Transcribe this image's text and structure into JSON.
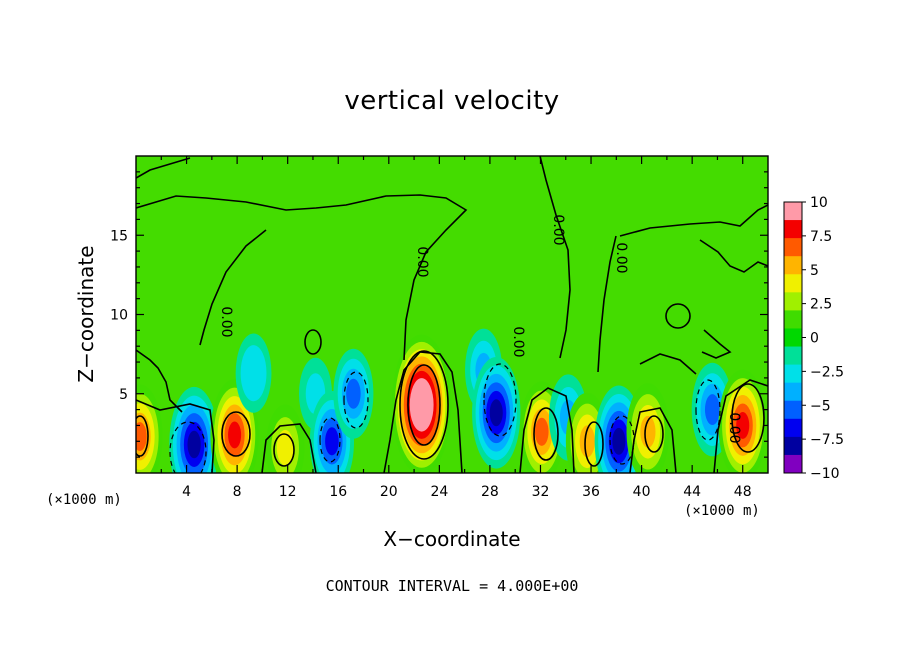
{
  "chart_data": {
    "type": "heatmap",
    "title": "vertical velocity",
    "xlabel": "X−coordinate",
    "ylabel": "Z−coordinate",
    "x_unit": "(×1000 m)",
    "x_ticks": [
      4,
      8,
      12,
      16,
      20,
      24,
      28,
      32,
      36,
      40,
      44,
      48
    ],
    "y_ticks": [
      5,
      10,
      15
    ],
    "xlim": [
      0,
      50
    ],
    "ylim": [
      0,
      20
    ],
    "colorbar": {
      "levels": [
        10,
        7.5,
        5,
        2.5,
        0,
        -2.5,
        -5,
        -7.5,
        -10
      ],
      "labels": [
        "10",
        "7.5",
        "5",
        "2.5",
        "0",
        "−2.5",
        "−5",
        "−7.5",
        "−10"
      ],
      "colors": [
        "#ff9aa8",
        "#f40000",
        "#ff5a00",
        "#ffb400",
        "#f0f000",
        "#a0f000",
        "#40dc00",
        "#00d800",
        "#00e098",
        "#00e0e8",
        "#00b0ff",
        "#0060ff",
        "#0000f0",
        "#0000a0",
        "#8000c0"
      ]
    },
    "contour_label": "0.00",
    "contour_interval_text": "CONTOUR INTERVAL =  4.000E+00",
    "features": [
      {
        "x": 0.3,
        "z": 2.3,
        "w": 7.0,
        "type": "updraft"
      },
      {
        "x": 4.6,
        "z": 1.8,
        "w": -8.5,
        "type": "downdraft"
      },
      {
        "x": 7.8,
        "z": 2.4,
        "w": 8.0,
        "type": "updraft"
      },
      {
        "x": 9.3,
        "z": 6.3,
        "w": -3.5,
        "type": "downdraft"
      },
      {
        "x": 11.8,
        "z": 1.6,
        "w": 4.5,
        "type": "updraft"
      },
      {
        "x": 14.2,
        "z": 5.0,
        "w": -2.5,
        "type": "downdraft"
      },
      {
        "x": 15.5,
        "z": 2.0,
        "w": -6.5,
        "type": "downdraft"
      },
      {
        "x": 17.2,
        "z": 5.0,
        "w": -5.0,
        "type": "downdraft"
      },
      {
        "x": 22.6,
        "z": 4.3,
        "w": 12.0,
        "type": "updraft"
      },
      {
        "x": 27.5,
        "z": 6.5,
        "w": -4.0,
        "type": "downdraft"
      },
      {
        "x": 28.5,
        "z": 3.8,
        "w": -8.0,
        "type": "downdraft"
      },
      {
        "x": 32.1,
        "z": 2.6,
        "w": 6.5,
        "type": "updraft"
      },
      {
        "x": 34.2,
        "z": 3.5,
        "w": -4.5,
        "type": "downdraft"
      },
      {
        "x": 35.7,
        "z": 2.0,
        "w": 6.0,
        "type": "updraft"
      },
      {
        "x": 38.2,
        "z": 2.0,
        "w": -8.0,
        "type": "downdraft"
      },
      {
        "x": 40.5,
        "z": 2.6,
        "w": 6.0,
        "type": "updraft"
      },
      {
        "x": 45.6,
        "z": 4.0,
        "w": -5.5,
        "type": "downdraft"
      },
      {
        "x": 48.0,
        "z": 3.0,
        "w": 8.0,
        "type": "updraft"
      }
    ]
  }
}
